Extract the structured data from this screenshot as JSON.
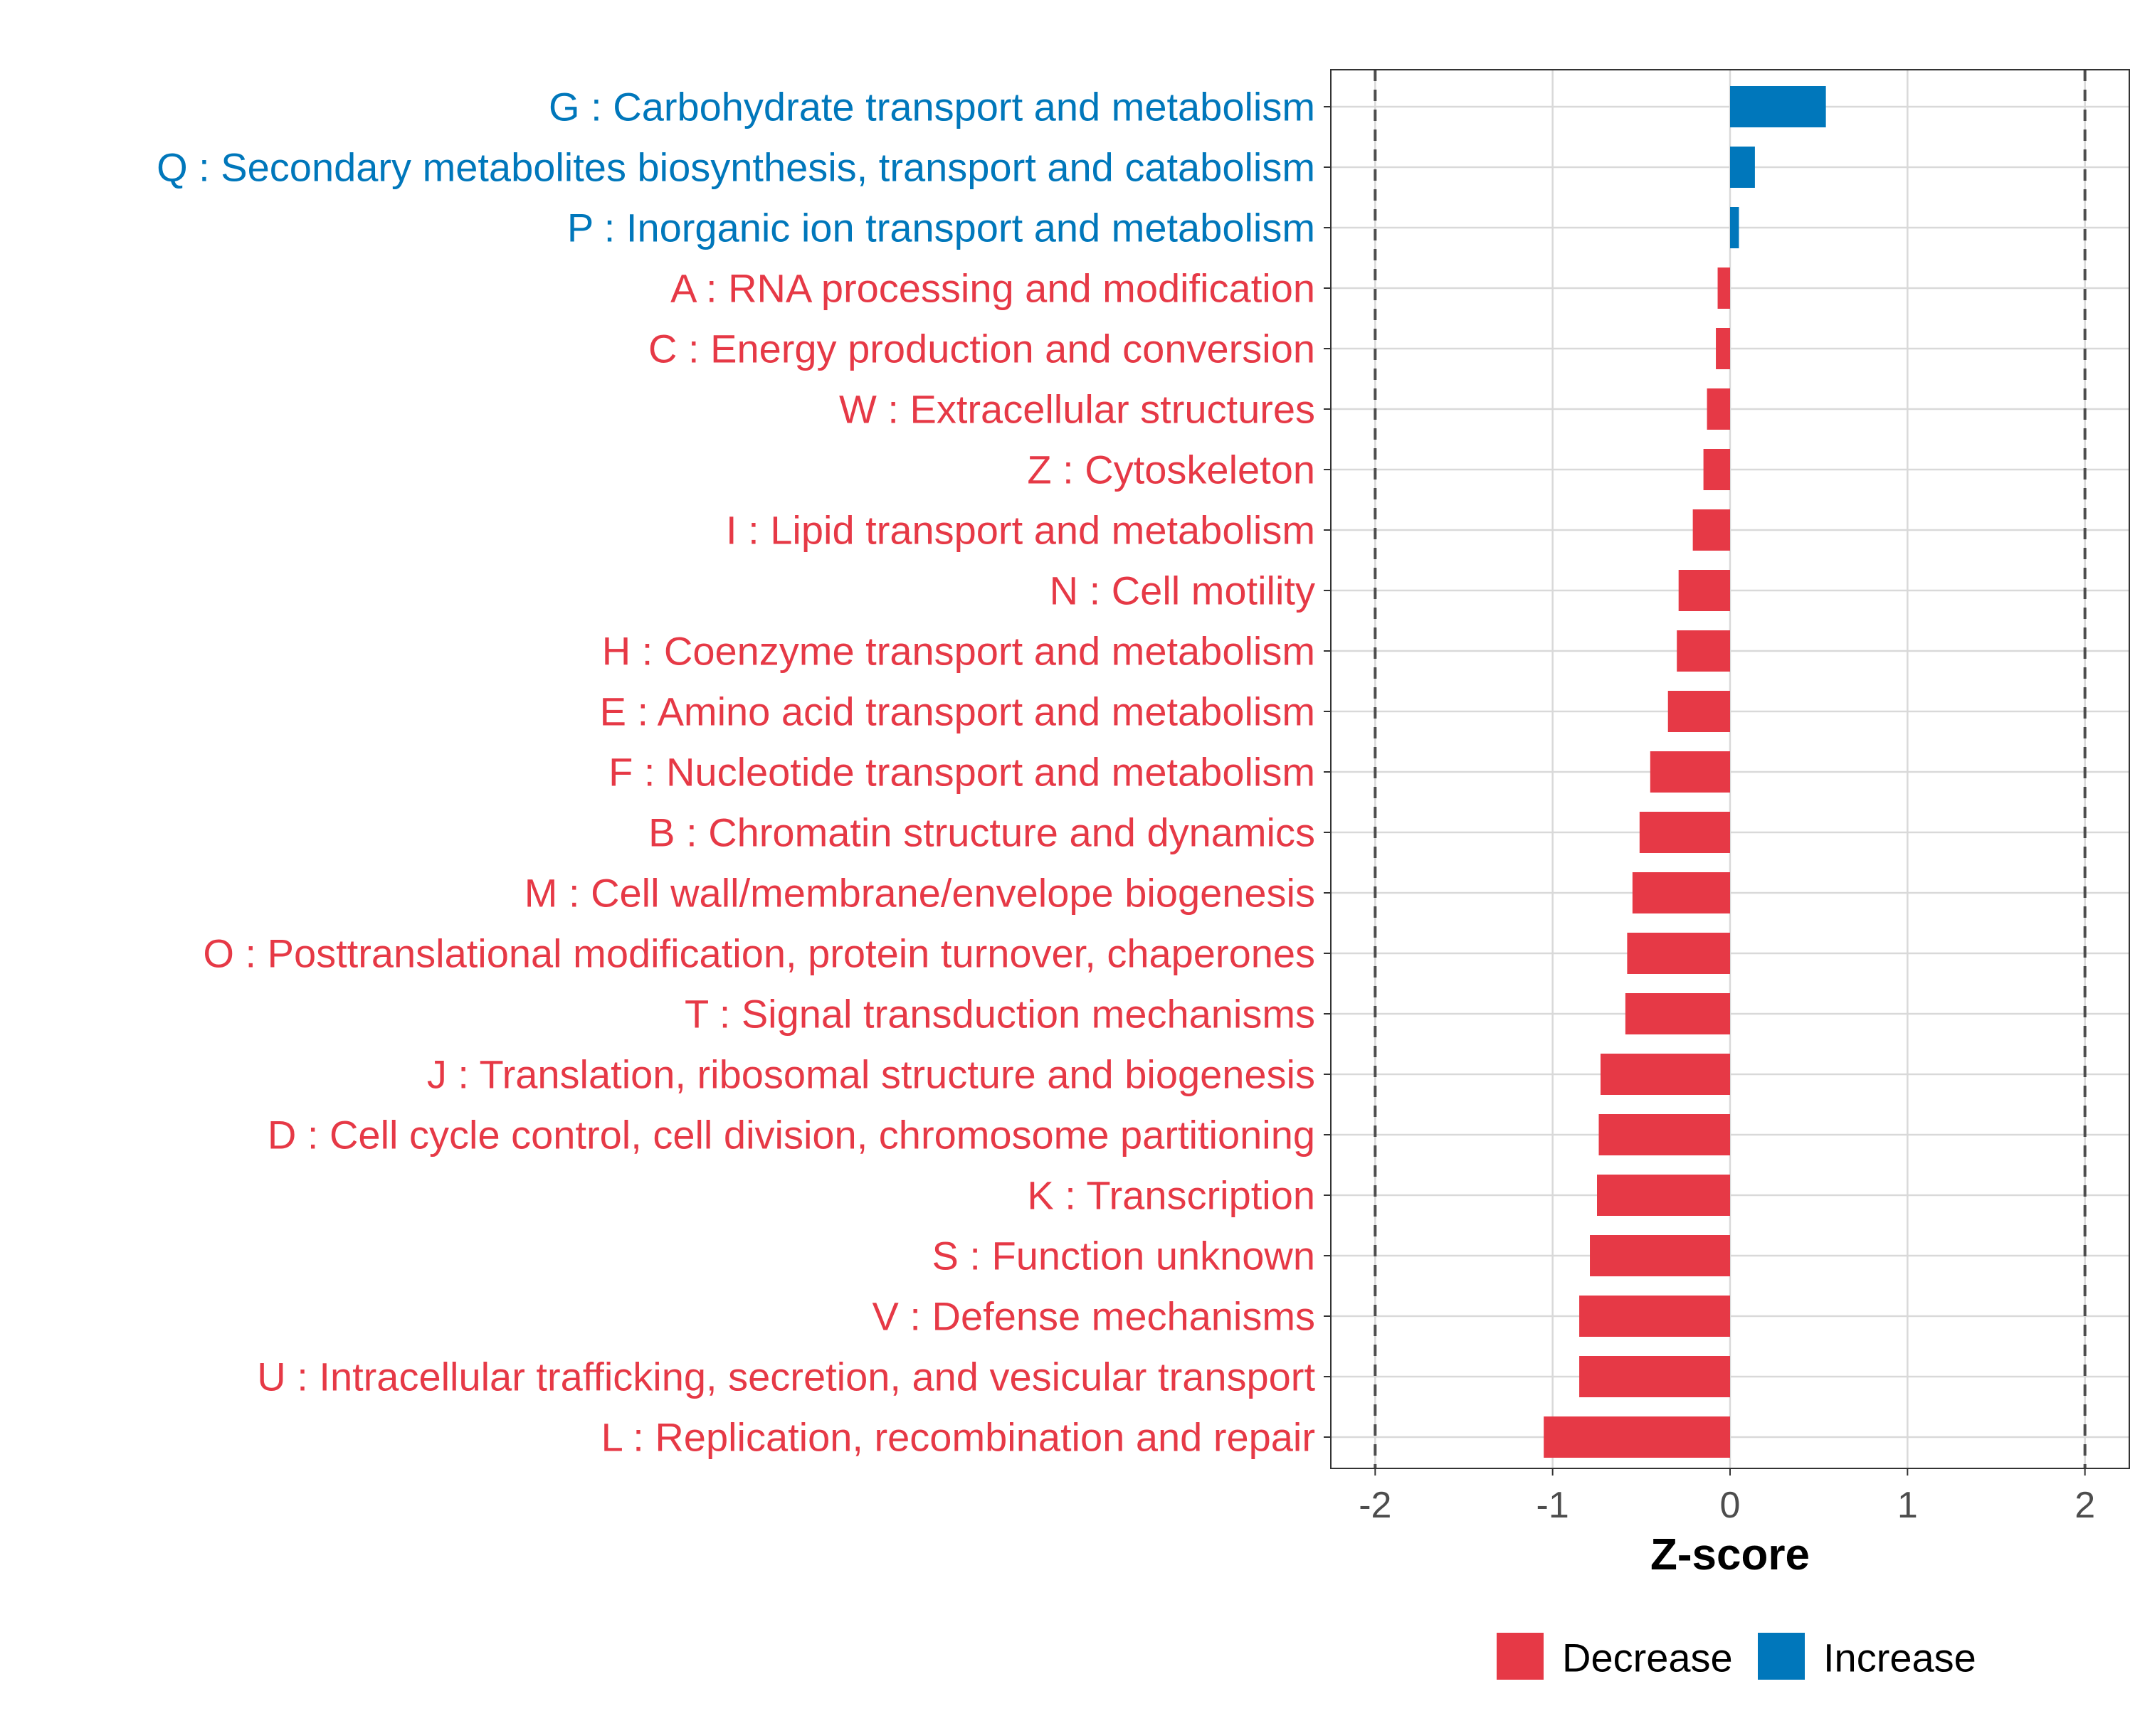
{
  "colors": {
    "decrease": "#E63946",
    "increase": "#0077BB",
    "grid": "#D9D9D9",
    "axis_text": "#4D4D4D",
    "title": "#000000",
    "ref_line": "#4D4D4D",
    "frame": "#333333"
  },
  "chart_data": {
    "type": "bar",
    "orientation": "horizontal",
    "title": "",
    "xlabel": "Z-score",
    "ylabel": "",
    "xlim": [
      -2.25,
      2.25
    ],
    "x_ticks": [
      -2,
      -1,
      0,
      1,
      2
    ],
    "x_tick_labels": [
      "-2",
      "-1",
      "0",
      "1",
      "2"
    ],
    "reference_lines": [
      -2,
      2
    ],
    "grid": true,
    "legend_position": "bottom",
    "legend": [
      {
        "name": "Decrease",
        "color_key": "decrease"
      },
      {
        "name": "Increase",
        "color_key": "increase"
      }
    ],
    "categories": [
      "G : Carbohydrate transport and metabolism",
      "Q : Secondary metabolites biosynthesis, transport and catabolism",
      "P : Inorganic ion transport and metabolism",
      "A : RNA processing and modification",
      "C : Energy production and conversion",
      "W : Extracellular structures",
      "Z : Cytoskeleton",
      "I : Lipid transport and metabolism",
      "N : Cell motility",
      "H : Coenzyme transport and metabolism",
      "E : Amino acid transport and metabolism",
      "F : Nucleotide transport and metabolism",
      "B : Chromatin structure and dynamics",
      "M : Cell wall/membrane/envelope biogenesis",
      "O : Posttranslational modification, protein turnover, chaperones",
      "T : Signal transduction mechanisms",
      "J : Translation, ribosomal structure and biogenesis",
      "D : Cell cycle control, cell division, chromosome partitioning",
      "K : Transcription",
      "S : Function unknown",
      "V : Defense mechanisms",
      "U : Intracellular trafficking, secretion, and vesicular transport",
      "L : Replication, recombination and repair"
    ],
    "values": [
      0.54,
      0.14,
      0.05,
      -0.07,
      -0.08,
      -0.13,
      -0.15,
      -0.21,
      -0.29,
      -0.3,
      -0.35,
      -0.45,
      -0.51,
      -0.55,
      -0.58,
      -0.59,
      -0.73,
      -0.74,
      -0.75,
      -0.79,
      -0.85,
      -0.85,
      -1.05
    ],
    "direction": [
      "Increase",
      "Increase",
      "Increase",
      "Decrease",
      "Decrease",
      "Decrease",
      "Decrease",
      "Decrease",
      "Decrease",
      "Decrease",
      "Decrease",
      "Decrease",
      "Decrease",
      "Decrease",
      "Decrease",
      "Decrease",
      "Decrease",
      "Decrease",
      "Decrease",
      "Decrease",
      "Decrease",
      "Decrease",
      "Decrease"
    ]
  }
}
